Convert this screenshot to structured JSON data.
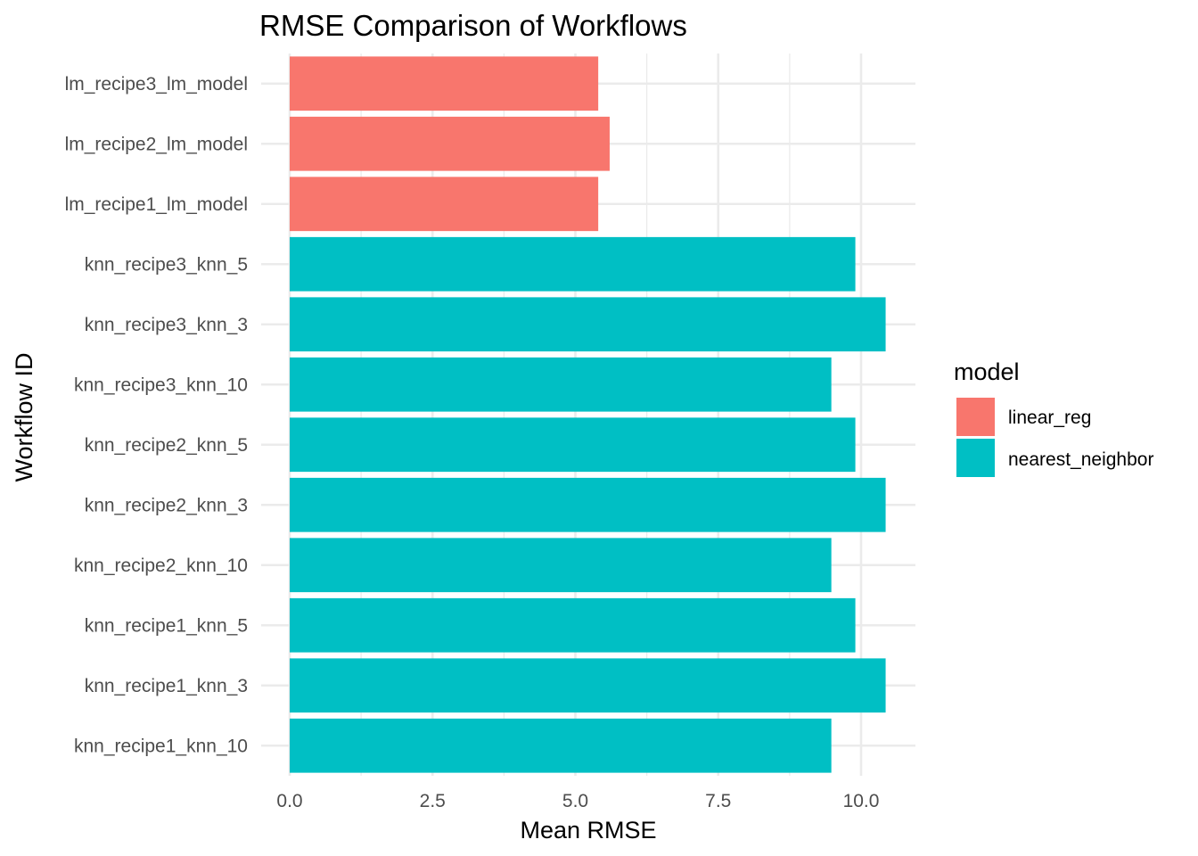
{
  "chart_data": {
    "type": "bar",
    "orientation": "horizontal",
    "title": "RMSE Comparison of Workflows",
    "xlabel": "Mean RMSE",
    "ylabel": "Workflow ID",
    "xlim": [
      0,
      10.9
    ],
    "x_ticks": [
      0,
      2.5,
      5,
      7.5,
      10
    ],
    "x_tick_labels": [
      "0.0",
      "2.5",
      "5.0",
      "7.5",
      "10.0"
    ],
    "grid": true,
    "legend": {
      "title": "model",
      "position": "right",
      "entries": [
        {
          "label": "linear_reg",
          "color": "#F8766D"
        },
        {
          "label": "nearest_neighbor",
          "color": "#00BFC4"
        }
      ]
    },
    "categories": [
      "lm_recipe3_lm_model",
      "lm_recipe2_lm_model",
      "lm_recipe1_lm_model",
      "knn_recipe3_knn_5",
      "knn_recipe3_knn_3",
      "knn_recipe3_knn_10",
      "knn_recipe2_knn_5",
      "knn_recipe2_knn_3",
      "knn_recipe2_knn_10",
      "knn_recipe1_knn_5",
      "knn_recipe1_knn_3",
      "knn_recipe1_knn_10"
    ],
    "values": [
      5.4,
      5.6,
      5.4,
      9.9,
      10.43,
      9.48,
      9.9,
      10.43,
      9.48,
      9.9,
      10.43,
      9.48
    ],
    "groups": [
      "linear_reg",
      "linear_reg",
      "linear_reg",
      "nearest_neighbor",
      "nearest_neighbor",
      "nearest_neighbor",
      "nearest_neighbor",
      "nearest_neighbor",
      "nearest_neighbor",
      "nearest_neighbor",
      "nearest_neighbor",
      "nearest_neighbor"
    ],
    "colors": {
      "linear_reg": "#F8766D",
      "nearest_neighbor": "#00BFC4"
    }
  }
}
